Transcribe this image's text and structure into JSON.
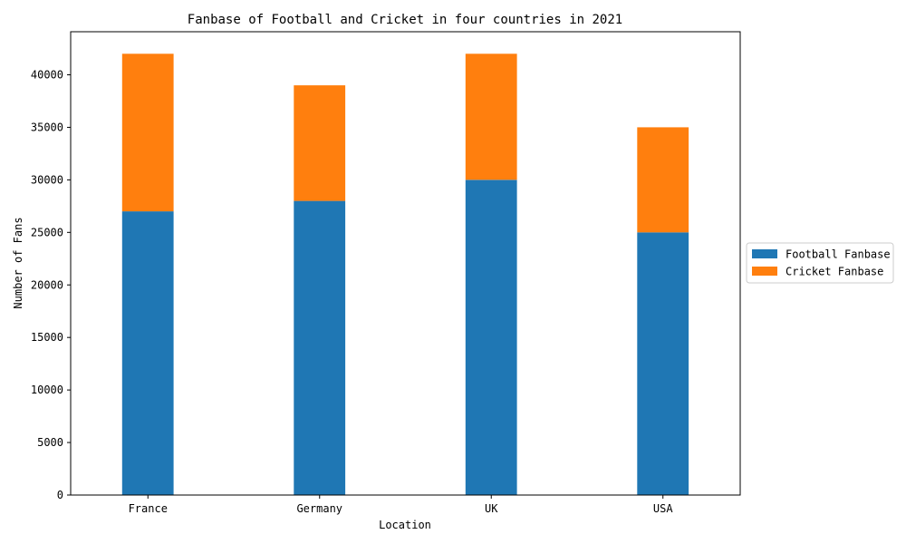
{
  "chart_data": {
    "type": "bar",
    "stacked": true,
    "title": "Fanbase of Football and Cricket in four countries in 2021",
    "xlabel": "Location",
    "ylabel": "Number of Fans",
    "categories": [
      "France",
      "Germany",
      "UK",
      "USA"
    ],
    "series": [
      {
        "name": "Football Fanbase",
        "color": "#1f77b4",
        "values": [
          27000,
          28000,
          30000,
          25000
        ]
      },
      {
        "name": "Cricket Fanbase",
        "color": "#ff7f0e",
        "values": [
          15000,
          11000,
          12000,
          10000
        ]
      }
    ],
    "ylim": [
      0,
      44100
    ],
    "yticks": [
      0,
      5000,
      10000,
      15000,
      20000,
      25000,
      30000,
      35000,
      40000
    ],
    "grid": false,
    "legend_position": "right, outside plot area"
  }
}
